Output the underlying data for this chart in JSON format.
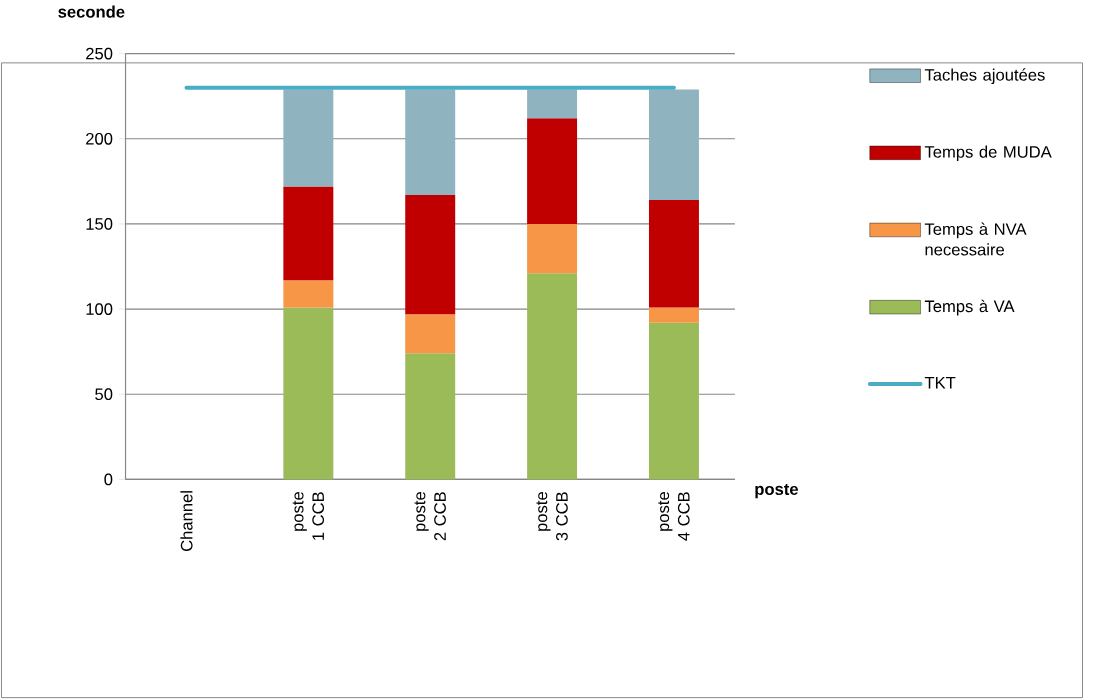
{
  "chart_data": {
    "type": "bar",
    "stacked": true,
    "ylabel": "seconde",
    "xlabel": "poste",
    "categories": [
      "Channel",
      "poste 1 CCB",
      "poste 2 CCB",
      "poste 3 CCB",
      "poste 4 CCB"
    ],
    "series": [
      {
        "name": "Temps à VA",
        "color": "#9bbb59",
        "values": [
          null,
          101,
          74,
          121,
          92
        ]
      },
      {
        "name": "Temps à NVA necessaire",
        "color": "#f79646",
        "values": [
          null,
          16,
          23,
          29,
          9
        ]
      },
      {
        "name": "Temps de MUDA",
        "color": "#c00000",
        "values": [
          null,
          55,
          70,
          62,
          63
        ]
      },
      {
        "name": "Taches ajoutées",
        "color": "#8fb4c0",
        "values": [
          null,
          57,
          62,
          17,
          65
        ]
      },
      {
        "name": "TKT",
        "type": "line",
        "color": "#4bacc6",
        "values": [
          230,
          230,
          230,
          230,
          230
        ]
      }
    ],
    "ylim": [
      0,
      250
    ],
    "yticks": [
      0,
      50,
      100,
      150,
      200,
      250
    ],
    "grid": "y",
    "legend": "right",
    "marker": "none",
    "line_style": "solid"
  }
}
